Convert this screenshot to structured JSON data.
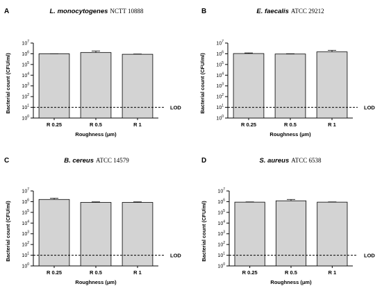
{
  "chart_data": [
    {
      "panel": "A",
      "type": "bar",
      "title_species": "L. monocytogenes",
      "title_strain": "NCTT 10888",
      "categories": [
        "R 0.25",
        "R 0.5",
        "R 1"
      ],
      "values": [
        1000000,
        1300000,
        900000
      ],
      "error_upper": [
        1000000,
        1800000,
        950000
      ],
      "ylabel": "Bacterial count (CFU/ml)",
      "xlabel": "Roughness (μm)",
      "yscale": "log",
      "ylim": [
        1,
        10000000
      ],
      "yticks": [
        "10",
        "10",
        "10",
        "10",
        "10",
        "10",
        "10",
        "10"
      ],
      "ytick_exponents": [
        "0",
        "1",
        "2",
        "3",
        "4",
        "5",
        "6",
        "7"
      ],
      "lod": 10,
      "lod_label": "LOD"
    },
    {
      "panel": "B",
      "type": "bar",
      "title_species": "E. faecalis",
      "title_strain": "ATCC 29212",
      "categories": [
        "R 0.25",
        "R 0.5",
        "R 1"
      ],
      "values": [
        1050000,
        950000,
        1500000
      ],
      "error_upper": [
        1200000,
        1000000,
        2100000
      ],
      "ylabel": "Bacterial count (CFU/ml)",
      "xlabel": "Roughness (μm)",
      "yscale": "log",
      "ylim": [
        1,
        10000000
      ],
      "yticks": [
        "10",
        "10",
        "10",
        "10",
        "10",
        "10",
        "10",
        "10"
      ],
      "ytick_exponents": [
        "0",
        "1",
        "2",
        "3",
        "4",
        "5",
        "6",
        "7"
      ],
      "lod": 10,
      "lod_label": "LOD"
    },
    {
      "panel": "C",
      "type": "bar",
      "title_species": "B. cereus",
      "title_strain": "ATCC 14579",
      "categories": [
        "R 0.25",
        "R 0.5",
        "R 1"
      ],
      "values": [
        1600000,
        850000,
        850000
      ],
      "error_upper": [
        2100000,
        950000,
        950000
      ],
      "ylabel": "Bacterial count (CFU/ml)",
      "xlabel": "Roughness (μm)",
      "yscale": "log",
      "ylim": [
        1,
        10000000
      ],
      "yticks": [
        "10",
        "10",
        "10",
        "10",
        "10",
        "10",
        "10",
        "10"
      ],
      "ytick_exponents": [
        "0",
        "1",
        "2",
        "3",
        "4",
        "5",
        "6",
        "7"
      ],
      "lod": 10,
      "lod_label": "LOD"
    },
    {
      "panel": "D",
      "type": "bar",
      "title_species": "S. aureus",
      "title_strain": "ATCC 6538",
      "categories": [
        "R 0.25",
        "R 0.5",
        "R 1"
      ],
      "values": [
        900000,
        1200000,
        900000
      ],
      "error_upper": [
        950000,
        1600000,
        950000
      ],
      "ylabel": "Bacterial count (CFU/ml)",
      "xlabel": "Roughness (μm)",
      "yscale": "log",
      "ylim": [
        1,
        10000000
      ],
      "yticks": [
        "10",
        "10",
        "10",
        "10",
        "10",
        "10",
        "10",
        "10"
      ],
      "ytick_exponents": [
        "0",
        "1",
        "2",
        "3",
        "4",
        "5",
        "6",
        "7"
      ],
      "lod": 10,
      "lod_label": "LOD"
    }
  ],
  "colors": {
    "bar_fill": "#d3d3d3",
    "bar_stroke": "#000000",
    "axis": "#000000",
    "lod_line": "#000000"
  }
}
